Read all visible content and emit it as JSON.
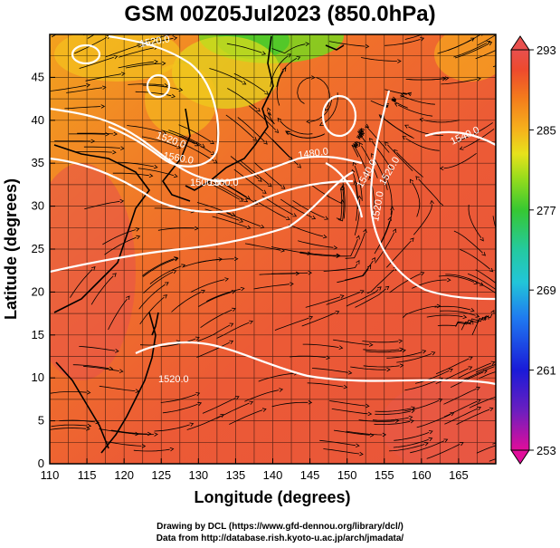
{
  "title": "GSM 00Z05Jul2023 (850.0hPa)",
  "axes": {
    "xlabel": "Longitude (degrees)",
    "ylabel": "Latitude (degrees)",
    "x_ticks": [
      "110",
      "115",
      "120",
      "125",
      "130",
      "135",
      "140",
      "145",
      "150",
      "155",
      "160",
      "165"
    ],
    "y_ticks": [
      "0",
      "5",
      "10",
      "15",
      "20",
      "25",
      "30",
      "35",
      "40",
      "45"
    ],
    "xlim": [
      110,
      170
    ],
    "ylim": [
      0,
      50
    ]
  },
  "colorbar": {
    "ticks": [
      "293",
      "285",
      "277",
      "269",
      "261",
      "253"
    ],
    "range": [
      253,
      293
    ],
    "colors": [
      "#e10d9a",
      "#6a1fc0",
      "#1a1ad8",
      "#1f7af0",
      "#22c6d8",
      "#24c9a0",
      "#36c832",
      "#98dc1c",
      "#e7e21b",
      "#f6b21c",
      "#f47b1c",
      "#ee4a2d",
      "#e8504e"
    ]
  },
  "contour_labels": [
    {
      "text": "1520.0"
    },
    {
      "text": "1520.0"
    },
    {
      "text": "1560.0"
    },
    {
      "text": "1500.0"
    },
    {
      "text": "1500.0"
    },
    {
      "text": "1480.0"
    },
    {
      "text": "1520.0"
    },
    {
      "text": "1540.0"
    },
    {
      "text": "1520.0"
    },
    {
      "text": "1540.0"
    },
    {
      "text": "1520.0"
    }
  ],
  "credits": {
    "line1": "Drawing by DCL (https://www.gfd-dennou.org/library/dcl/)",
    "line2": "Data from http://database.rish.kyoto-u.ac.jp/arch/jmadata/"
  }
}
